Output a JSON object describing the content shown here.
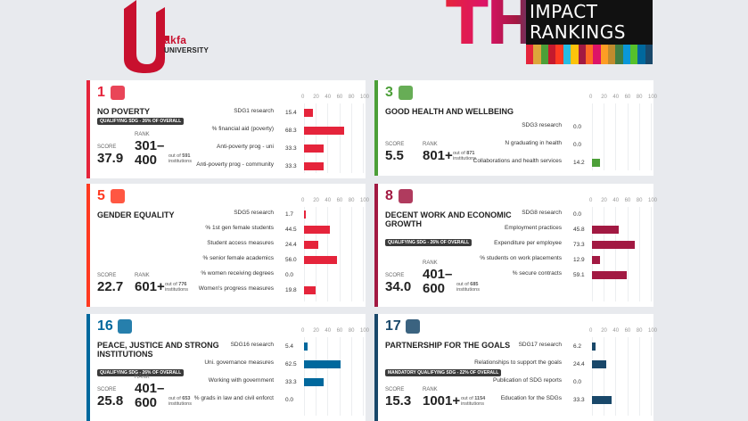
{
  "logos": {
    "akfa_name": "akfa",
    "akfa_sub": "UNIVERSITY",
    "the_letters": "THE",
    "the_impact": "IMPACT",
    "the_rankings": "RANKINGS",
    "sdg_colors": [
      "#e5243b",
      "#dda63a",
      "#4c9f38",
      "#c5192d",
      "#ff3a21",
      "#26bde2",
      "#fcc30b",
      "#a21942",
      "#fd6925",
      "#dd1367",
      "#fd9d24",
      "#bf8b2e",
      "#3f7e44",
      "#0a97d9",
      "#56c02b",
      "#00689d",
      "#19486a"
    ]
  },
  "axis_ticks": [
    "0",
    "20",
    "40",
    "60",
    "80",
    "100"
  ],
  "labels": {
    "score": "SCORE",
    "rank": "RANK",
    "out_of": "out of",
    "institutions": "institutions"
  },
  "cards": [
    {
      "id": "sdg1",
      "number": "1",
      "title": "NO POVERTY",
      "color": "#e5243b",
      "bar_color": "#e5243b",
      "badge": "QUALIFYING SDG - 26% OF OVERALL",
      "score": "37.9",
      "rank": "301–\n400",
      "total": "591",
      "metrics": [
        {
          "label": "SDG1 research",
          "value": 15.4,
          "value_text": "15.4"
        },
        {
          "label": "% financial aid (poverty)",
          "value": 68.3,
          "value_text": "68.3"
        },
        {
          "label": "Anti-poverty prog - uni",
          "value": 33.3,
          "value_text": "33.3"
        },
        {
          "label": "Anti-poverty prog - community",
          "value": 33.3,
          "value_text": "33.3"
        }
      ]
    },
    {
      "id": "sdg3",
      "number": "3",
      "title": "GOOD HEALTH AND WELLBEING",
      "color": "#4c9f38",
      "bar_color": "#4c9f38",
      "badge": "",
      "score": "5.5",
      "rank": "801+",
      "total": "871",
      "metrics": [
        {
          "label": "SDG3 research",
          "value": 0.0,
          "value_text": "0.0"
        },
        {
          "label": "N graduating in health",
          "value": 0.0,
          "value_text": "0.0"
        },
        {
          "label": "Collaborations and health services",
          "value": 14.2,
          "value_text": "14.2"
        }
      ]
    },
    {
      "id": "sdg5",
      "number": "5",
      "title": "GENDER EQUALITY",
      "color": "#ff3a21",
      "bar_color": "#e5243b",
      "badge": "",
      "score": "22.7",
      "rank": "601+",
      "total": "776",
      "metrics": [
        {
          "label": "SDG5 research",
          "value": 1.7,
          "value_text": "1.7"
        },
        {
          "label": "% 1st gen female students",
          "value": 44.5,
          "value_text": "44.5"
        },
        {
          "label": "Student access measures",
          "value": 24.4,
          "value_text": "24.4"
        },
        {
          "label": "% senior female academics",
          "value": 56.0,
          "value_text": "56.0"
        },
        {
          "label": "% women receiving degrees",
          "value": 0.0,
          "value_text": "0.0"
        },
        {
          "label": "Women's progress measures",
          "value": 19.8,
          "value_text": "19.8"
        }
      ]
    },
    {
      "id": "sdg8",
      "number": "8",
      "title": "DECENT WORK AND ECONOMIC GROWTH",
      "color": "#a21942",
      "bar_color": "#a21942",
      "badge": "QUALIFYING SDG - 26% OF OVERALL",
      "score": "34.0",
      "rank": "401–\n600",
      "total": "685",
      "metrics": [
        {
          "label": "SDG8 research",
          "value": 0.0,
          "value_text": "0.0"
        },
        {
          "label": "Employment practices",
          "value": 45.8,
          "value_text": "45.8"
        },
        {
          "label": "Expenditure per employee",
          "value": 73.3,
          "value_text": "73.3"
        },
        {
          "label": "% students on work placements",
          "value": 12.9,
          "value_text": "12.9"
        },
        {
          "label": "% secure contracts",
          "value": 59.1,
          "value_text": "59.1"
        }
      ]
    },
    {
      "id": "sdg16",
      "number": "16",
      "title": "PEACE, JUSTICE AND STRONG INSTITUTIONS",
      "color": "#00689d",
      "bar_color": "#00689d",
      "badge": "QUALIFYING SDG - 26% OF OVERALL",
      "score": "25.8",
      "rank": "401–\n600",
      "total": "653",
      "metrics": [
        {
          "label": "SDG16 research",
          "value": 5.4,
          "value_text": "5.4"
        },
        {
          "label": "Uni. governance measures",
          "value": 62.5,
          "value_text": "62.5"
        },
        {
          "label": "Working with government",
          "value": 33.3,
          "value_text": "33.3"
        },
        {
          "label": "% grads in law and civil enforct",
          "value": 0.0,
          "value_text": "0.0"
        }
      ]
    },
    {
      "id": "sdg17",
      "number": "17",
      "title": "PARTNERSHIP FOR THE GOALS",
      "color": "#19486a",
      "bar_color": "#19486a",
      "badge": "MANDATORY QUALIFYING SDG - 22% OF OVERALL",
      "score": "15.3",
      "rank": "1001+",
      "total": "1154",
      "metrics": [
        {
          "label": "SDG17 research",
          "value": 6.2,
          "value_text": "6.2"
        },
        {
          "label": "Relationships to support the goals",
          "value": 24.4,
          "value_text": "24.4"
        },
        {
          "label": "Publication of SDG reports",
          "value": 0.0,
          "value_text": "0.0"
        },
        {
          "label": "Education for the SDGs",
          "value": 33.3,
          "value_text": "33.3"
        }
      ]
    }
  ]
}
